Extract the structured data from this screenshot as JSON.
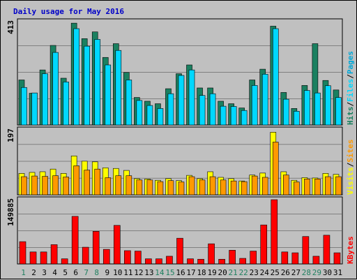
{
  "chart_data": [
    {
      "type": "bar",
      "title": "Daily usage for May 2016",
      "categories": [
        "1",
        "2",
        "3",
        "4",
        "5",
        "6",
        "7",
        "8",
        "9",
        "10",
        "11",
        "12",
        "13",
        "14",
        "15",
        "16",
        "17",
        "18",
        "19",
        "20",
        "21",
        "22",
        "23",
        "24",
        "25",
        "26",
        "27",
        "28",
        "29",
        "30",
        "31"
      ],
      "weekend_days": [
        "1",
        "7",
        "8",
        "14",
        "15",
        "21",
        "22",
        "28",
        "29"
      ],
      "ymax_label": "413",
      "ylim": [
        0,
        413
      ],
      "axis_label_parts": [
        "Pages",
        "Files",
        "Hits"
      ],
      "series": [
        {
          "name": "Hits",
          "color": "#1a8060",
          "values": [
            180,
            127,
            220,
            318,
            187,
            407,
            345,
            372,
            270,
            325,
            210,
            110,
            95,
            85,
            145,
            205,
            240,
            148,
            148,
            95,
            85,
            68,
            180,
            223,
            395,
            130,
            66,
            158,
            325,
            178,
            140
          ]
        },
        {
          "name": "Files",
          "color": "#00d8ff",
          "values": [
            150,
            128,
            205,
            290,
            172,
            385,
            315,
            342,
            240,
            298,
            180,
            98,
            78,
            66,
            125,
            198,
            220,
            118,
            125,
            75,
            74,
            58,
            158,
            203,
            385,
            103,
            55,
            138,
            128,
            157,
            110
          ]
        },
        {
          "name": "Pages",
          "color": "#00a8d8",
          "values": [
            150,
            128,
            205,
            290,
            172,
            385,
            315,
            342,
            240,
            298,
            180,
            98,
            78,
            66,
            125,
            198,
            220,
            118,
            125,
            75,
            74,
            58,
            158,
            203,
            385,
            103,
            55,
            138,
            128,
            157,
            110
          ]
        }
      ]
    },
    {
      "type": "bar",
      "ymax_label": "197",
      "ylim": [
        0,
        197
      ],
      "axis_label_parts": [
        "Sites",
        "Visits"
      ],
      "series": [
        {
          "name": "Visits",
          "color": "#ffff00",
          "values": [
            65,
            68,
            70,
            78,
            65,
            118,
            102,
            100,
            82,
            80,
            74,
            49,
            48,
            44,
            49,
            43,
            59,
            49,
            70,
            53,
            49,
            42,
            60,
            66,
            190,
            70,
            44,
            52,
            51,
            65,
            62
          ]
        },
        {
          "name": "Sites",
          "color": "#ff9900",
          "values": [
            55,
            57,
            56,
            58,
            54,
            88,
            75,
            78,
            52,
            58,
            58,
            45,
            45,
            40,
            43,
            39,
            55,
            45,
            55,
            45,
            42,
            40,
            57,
            53,
            160,
            60,
            39,
            48,
            48,
            55,
            55
          ]
        }
      ]
    },
    {
      "type": "bar",
      "ymax_label": "149885",
      "ylim": [
        0,
        149885
      ],
      "axis_label_parts": [
        "KBytes"
      ],
      "series": [
        {
          "name": "KBytes",
          "color": "#ff0000",
          "values": [
            52000,
            28000,
            28000,
            45000,
            12000,
            111000,
            39000,
            76000,
            34000,
            90000,
            31000,
            30000,
            12000,
            12000,
            18000,
            60000,
            12000,
            11000,
            47000,
            11000,
            32000,
            13000,
            30000,
            91000,
            149885,
            28000,
            26000,
            64000,
            18000,
            67000,
            26000
          ]
        }
      ]
    }
  ]
}
